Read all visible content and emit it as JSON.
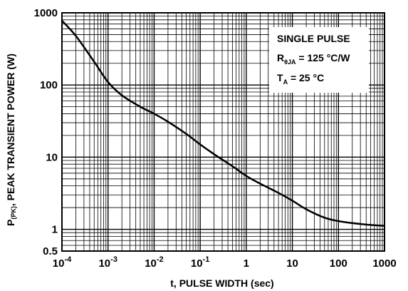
{
  "chart_data": {
    "type": "line",
    "title": "",
    "xlabel": "t, PULSE WIDTH (sec)",
    "ylabel": "P(PK), PEAK TRANSIENT POWER (W)",
    "ylabel_parts": {
      "symbol": "P",
      "subscript": "(PK)",
      "rest": ", PEAK TRANSIENT POWER (W)"
    },
    "xscale": "log",
    "yscale": "log",
    "xlim": [
      0.0001,
      1000
    ],
    "ylim": [
      0.5,
      1000
    ],
    "grid": true,
    "x_tick_labels": [
      {
        "value": 0.0001,
        "base": "10",
        "exp": "-4"
      },
      {
        "value": 0.001,
        "base": "10",
        "exp": "-3"
      },
      {
        "value": 0.01,
        "base": "10",
        "exp": "-2"
      },
      {
        "value": 0.1,
        "base": "10",
        "exp": "-1"
      },
      {
        "value": 1,
        "base": "1",
        "exp": ""
      },
      {
        "value": 10,
        "base": "10",
        "exp": ""
      },
      {
        "value": 100,
        "base": "100",
        "exp": ""
      },
      {
        "value": 1000,
        "base": "1000",
        "exp": ""
      }
    ],
    "y_tick_labels": [
      {
        "value": 1000,
        "label": "1000"
      },
      {
        "value": 100,
        "label": "100"
      },
      {
        "value": 10,
        "label": "10"
      },
      {
        "value": 1,
        "label": "1"
      },
      {
        "value": 0.5,
        "label": "0.5"
      }
    ],
    "annotation": {
      "line1": "SINGLE PULSE",
      "line2_symbol": "R",
      "line2_sub": "θJA",
      "line2_value": " = 125 °C/W",
      "line3_symbol": "T",
      "line3_sub": "A",
      "line3_value": " = 25 °C"
    },
    "series": [
      {
        "x": [
          0.0001,
          0.0002,
          0.0005,
          0.001,
          0.002,
          0.005,
          0.01,
          0.02,
          0.05,
          0.1,
          0.2,
          0.5,
          1,
          2,
          5,
          10,
          20,
          50,
          100,
          200,
          500,
          1000
        ],
        "y": [
          780,
          480,
          210,
          110,
          72,
          50,
          40,
          31,
          21,
          15,
          11,
          7.5,
          5.5,
          4.3,
          3.2,
          2.5,
          1.9,
          1.45,
          1.3,
          1.22,
          1.15,
          1.12
        ]
      }
    ]
  }
}
